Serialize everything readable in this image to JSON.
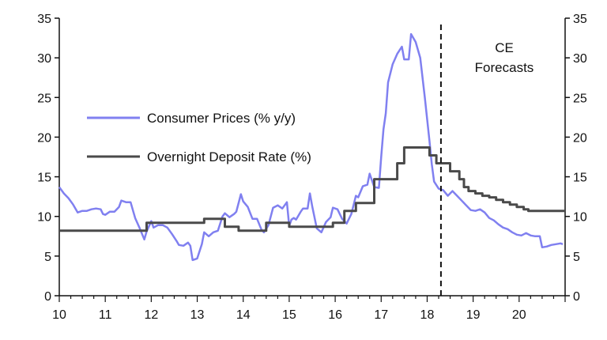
{
  "chart_data": {
    "type": "line",
    "title": "",
    "xlabel": "",
    "ylabel": "",
    "xlim": [
      10,
      21
    ],
    "ylim": [
      0,
      35
    ],
    "x_ticks": [
      "10",
      "11",
      "12",
      "13",
      "14",
      "15",
      "16",
      "17",
      "18",
      "19",
      "20"
    ],
    "y_ticks_left": [
      "0",
      "5",
      "10",
      "15",
      "20",
      "25",
      "30",
      "35"
    ],
    "y_ticks_right": [
      "0",
      "5",
      "10",
      "15",
      "20",
      "25",
      "30",
      "35"
    ],
    "grid": false,
    "legend_placement": "left-middle",
    "forecast_marker": {
      "x": 18.3,
      "label_line1": "CE",
      "label_line2": "Forecasts"
    },
    "series": [
      {
        "name": "Consumer Prices (% y/y)",
        "color": "#8080f0",
        "points": [
          [
            10.0,
            13.7
          ],
          [
            10.1,
            12.9
          ],
          [
            10.2,
            12.3
          ],
          [
            10.3,
            11.5
          ],
          [
            10.4,
            10.5
          ],
          [
            10.5,
            10.7
          ],
          [
            10.6,
            10.7
          ],
          [
            10.7,
            10.9
          ],
          [
            10.8,
            11.0
          ],
          [
            10.9,
            10.9
          ],
          [
            10.95,
            10.3
          ],
          [
            11.0,
            10.2
          ],
          [
            11.1,
            10.6
          ],
          [
            11.2,
            10.6
          ],
          [
            11.3,
            11.2
          ],
          [
            11.35,
            12.0
          ],
          [
            11.45,
            11.8
          ],
          [
            11.55,
            11.8
          ],
          [
            11.65,
            9.8
          ],
          [
            11.75,
            8.5
          ],
          [
            11.85,
            7.1
          ],
          [
            11.9,
            8.1
          ],
          [
            12.0,
            9.4
          ],
          [
            12.05,
            8.6
          ],
          [
            12.15,
            8.9
          ],
          [
            12.25,
            8.9
          ],
          [
            12.35,
            8.6
          ],
          [
            12.45,
            7.8
          ],
          [
            12.55,
            6.9
          ],
          [
            12.6,
            6.4
          ],
          [
            12.7,
            6.3
          ],
          [
            12.8,
            6.7
          ],
          [
            12.85,
            6.3
          ],
          [
            12.9,
            4.5
          ],
          [
            13.0,
            4.7
          ],
          [
            13.1,
            6.5
          ],
          [
            13.15,
            8.0
          ],
          [
            13.25,
            7.5
          ],
          [
            13.35,
            8.0
          ],
          [
            13.45,
            8.2
          ],
          [
            13.55,
            10.0
          ],
          [
            13.6,
            10.4
          ],
          [
            13.7,
            9.9
          ],
          [
            13.8,
            10.3
          ],
          [
            13.85,
            10.6
          ],
          [
            13.95,
            12.8
          ],
          [
            14.0,
            11.9
          ],
          [
            14.1,
            11.2
          ],
          [
            14.2,
            9.7
          ],
          [
            14.3,
            9.7
          ],
          [
            14.4,
            8.3
          ],
          [
            14.45,
            8.0
          ],
          [
            14.55,
            8.9
          ],
          [
            14.65,
            11.1
          ],
          [
            14.75,
            11.4
          ],
          [
            14.85,
            11.0
          ],
          [
            14.95,
            11.8
          ],
          [
            15.0,
            8.8
          ],
          [
            15.05,
            9.6
          ],
          [
            15.1,
            9.8
          ],
          [
            15.15,
            9.6
          ],
          [
            15.25,
            10.6
          ],
          [
            15.3,
            11.0
          ],
          [
            15.4,
            11.0
          ],
          [
            15.45,
            12.9
          ],
          [
            15.5,
            11.3
          ],
          [
            15.55,
            9.9
          ],
          [
            15.6,
            8.5
          ],
          [
            15.7,
            8.0
          ],
          [
            15.8,
            9.3
          ],
          [
            15.9,
            9.9
          ],
          [
            15.95,
            11.1
          ],
          [
            16.05,
            10.9
          ],
          [
            16.15,
            9.7
          ],
          [
            16.25,
            9.1
          ],
          [
            16.35,
            10.3
          ],
          [
            16.45,
            12.6
          ],
          [
            16.5,
            12.4
          ],
          [
            16.6,
            13.8
          ],
          [
            16.7,
            14.0
          ],
          [
            16.75,
            15.4
          ],
          [
            16.85,
            13.7
          ],
          [
            16.95,
            13.6
          ],
          [
            17.0,
            17.5
          ],
          [
            17.05,
            21.0
          ],
          [
            17.1,
            23.0
          ],
          [
            17.15,
            26.9
          ],
          [
            17.25,
            29.2
          ],
          [
            17.35,
            30.5
          ],
          [
            17.45,
            31.4
          ],
          [
            17.5,
            29.8
          ],
          [
            17.6,
            29.8
          ],
          [
            17.65,
            33.0
          ],
          [
            17.75,
            32.0
          ],
          [
            17.85,
            30.0
          ],
          [
            17.95,
            25.0
          ],
          [
            18.05,
            19.5
          ],
          [
            18.1,
            16.6
          ],
          [
            18.15,
            14.4
          ],
          [
            18.25,
            13.5
          ],
          [
            18.35,
            13.3
          ],
          [
            18.45,
            12.6
          ],
          [
            18.55,
            13.2
          ],
          [
            18.65,
            12.6
          ],
          [
            18.75,
            12.0
          ],
          [
            18.85,
            11.4
          ],
          [
            18.95,
            10.8
          ],
          [
            19.05,
            10.7
          ],
          [
            19.15,
            10.9
          ],
          [
            19.25,
            10.5
          ],
          [
            19.35,
            9.8
          ],
          [
            19.45,
            9.5
          ],
          [
            19.55,
            9.0
          ],
          [
            19.65,
            8.6
          ],
          [
            19.75,
            8.4
          ],
          [
            19.85,
            8.0
          ],
          [
            19.95,
            7.7
          ],
          [
            20.05,
            7.6
          ],
          [
            20.15,
            7.9
          ],
          [
            20.25,
            7.6
          ],
          [
            20.35,
            7.5
          ],
          [
            20.45,
            7.5
          ],
          [
            20.5,
            6.1
          ],
          [
            20.6,
            6.2
          ],
          [
            20.7,
            6.4
          ],
          [
            20.8,
            6.5
          ],
          [
            20.9,
            6.6
          ],
          [
            20.95,
            6.5
          ]
        ]
      },
      {
        "name": "Overnight Deposit Rate (%)",
        "color": "#4a4a4a",
        "points": [
          [
            10.0,
            8.2
          ],
          [
            11.9,
            8.2
          ],
          [
            11.9,
            9.2
          ],
          [
            13.15,
            9.2
          ],
          [
            13.15,
            9.7
          ],
          [
            13.6,
            9.7
          ],
          [
            13.6,
            8.7
          ],
          [
            13.9,
            8.7
          ],
          [
            13.9,
            8.2
          ],
          [
            14.5,
            8.2
          ],
          [
            14.5,
            9.2
          ],
          [
            15.0,
            9.2
          ],
          [
            15.0,
            8.7
          ],
          [
            15.95,
            8.7
          ],
          [
            15.95,
            9.2
          ],
          [
            16.2,
            9.2
          ],
          [
            16.2,
            10.7
          ],
          [
            16.45,
            10.7
          ],
          [
            16.45,
            11.7
          ],
          [
            16.85,
            11.7
          ],
          [
            16.85,
            14.7
          ],
          [
            17.35,
            14.7
          ],
          [
            17.35,
            16.7
          ],
          [
            17.5,
            16.7
          ],
          [
            17.5,
            18.7
          ],
          [
            18.05,
            18.7
          ],
          [
            18.05,
            17.7
          ],
          [
            18.2,
            17.7
          ],
          [
            18.2,
            16.7
          ],
          [
            18.5,
            16.7
          ],
          [
            18.5,
            15.7
          ],
          [
            18.7,
            15.7
          ],
          [
            18.7,
            14.7
          ],
          [
            18.8,
            14.7
          ],
          [
            18.8,
            13.7
          ],
          [
            18.9,
            13.7
          ],
          [
            18.9,
            13.2
          ],
          [
            19.05,
            13.2
          ],
          [
            19.05,
            12.9
          ],
          [
            19.2,
            12.9
          ],
          [
            19.2,
            12.6
          ],
          [
            19.35,
            12.6
          ],
          [
            19.35,
            12.4
          ],
          [
            19.5,
            12.4
          ],
          [
            19.5,
            12.1
          ],
          [
            19.65,
            12.1
          ],
          [
            19.65,
            11.8
          ],
          [
            19.8,
            11.8
          ],
          [
            19.8,
            11.5
          ],
          [
            19.95,
            11.5
          ],
          [
            19.95,
            11.2
          ],
          [
            20.1,
            11.2
          ],
          [
            20.1,
            10.9
          ],
          [
            20.2,
            10.9
          ],
          [
            20.2,
            10.7
          ],
          [
            21.0,
            10.7
          ]
        ]
      }
    ]
  }
}
